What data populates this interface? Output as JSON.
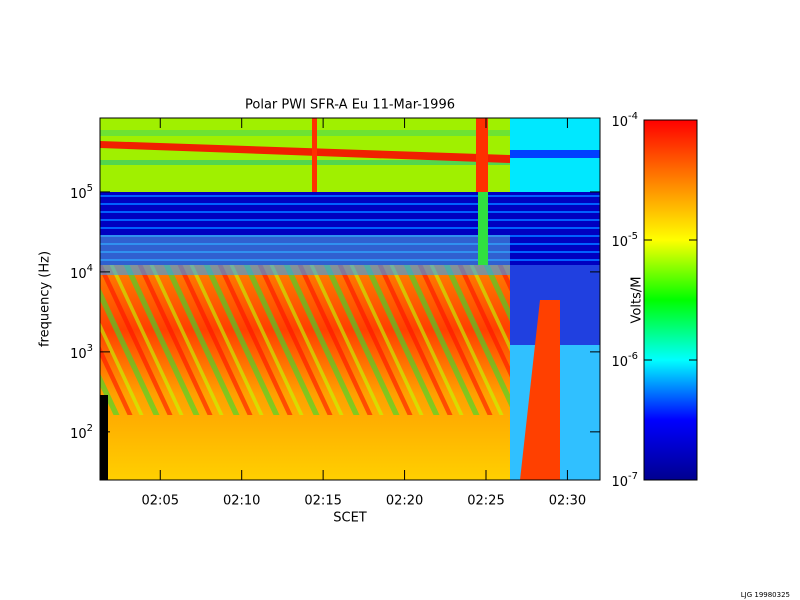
{
  "chart_data": {
    "type": "spectrogram",
    "title": "Polar PWI SFR-A Eu  11-Mar-1996",
    "xlabel": "SCET",
    "ylabel": "frequency (Hz)",
    "log_y": true,
    "xlim": [
      121.3,
      152.0
    ],
    "xticks": [
      {
        "value": 125,
        "label": "02:05"
      },
      {
        "value": 130,
        "label": "02:10"
      },
      {
        "value": 135,
        "label": "02:15"
      },
      {
        "value": 140,
        "label": "02:20"
      },
      {
        "value": 145,
        "label": "02:25"
      },
      {
        "value": 150,
        "label": "02:30"
      }
    ],
    "ylim": [
      25,
      840000
    ],
    "yticks": [
      {
        "value": 100,
        "label": "10",
        "exponent": "2"
      },
      {
        "value": 1000,
        "label": "10",
        "exponent": "3"
      },
      {
        "value": 10000,
        "label": "10",
        "exponent": "4"
      },
      {
        "value": 100000,
        "label": "10",
        "exponent": "5"
      }
    ],
    "colorbar": {
      "label": "Volts/M",
      "log": true,
      "lim": [
        1e-07,
        0.0001
      ],
      "ticks": [
        {
          "value": 1e-07,
          "label": "10",
          "exponent": "-7"
        },
        {
          "value": 1e-06,
          "label": "10",
          "exponent": "-6"
        },
        {
          "value": 1e-05,
          "label": "10",
          "exponent": "-5"
        },
        {
          "value": 0.0001,
          "label": "10",
          "exponent": "-4"
        }
      ],
      "colors": [
        "#00008f",
        "#0000ff",
        "#00ffff",
        "#00ff00",
        "#ffff00",
        "#ff8000",
        "#ff0000"
      ]
    },
    "footer": "LJG 19980325"
  }
}
